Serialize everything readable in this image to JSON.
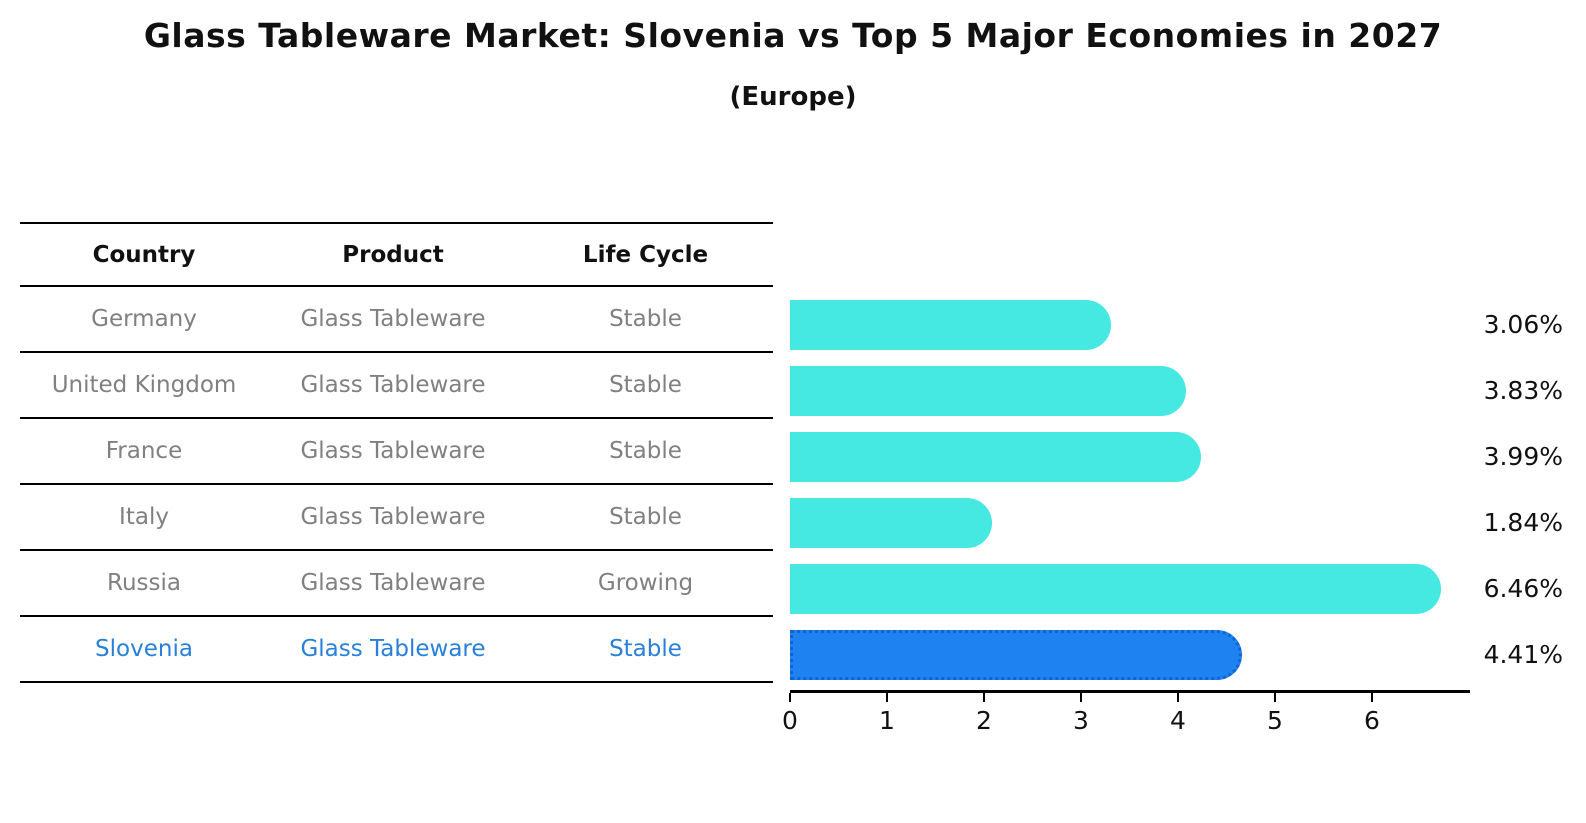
{
  "title": "Glass Tableware Market: Slovenia vs Top 5 Major Economies in 2027",
  "subtitle": "(Europe)",
  "table": {
    "headers": [
      "Country",
      "Product",
      "Life Cycle"
    ],
    "rows": [
      {
        "country": "Germany",
        "product": "Glass Tableware",
        "life_cycle": "Stable",
        "highlight": false
      },
      {
        "country": "United Kingdom",
        "product": "Glass Tableware",
        "life_cycle": "Stable",
        "highlight": false
      },
      {
        "country": "France",
        "product": "Glass Tableware",
        "life_cycle": "Stable",
        "highlight": false
      },
      {
        "country": "Italy",
        "product": "Glass Tableware",
        "life_cycle": "Stable",
        "highlight": false
      },
      {
        "country": "Russia",
        "product": "Glass Tableware",
        "life_cycle": "Growing",
        "highlight": false
      },
      {
        "country": "Slovenia",
        "product": "Glass Tableware",
        "life_cycle": "Stable",
        "highlight": true
      }
    ]
  },
  "chart_data": {
    "type": "bar",
    "orientation": "horizontal",
    "title": "Glass Tableware Market: Slovenia vs Top 5 Major Economies in 2027",
    "subtitle": "(Europe)",
    "categories": [
      "Germany",
      "United Kingdom",
      "France",
      "Italy",
      "Russia",
      "Slovenia"
    ],
    "values": [
      3.06,
      3.83,
      3.99,
      1.84,
      6.46,
      4.41
    ],
    "labels": [
      "3.06%",
      "3.83%",
      "3.99%",
      "1.84%",
      "6.46%",
      "4.41%"
    ],
    "x_ticks": [
      "0",
      "1",
      "2",
      "3",
      "4",
      "5",
      "6"
    ],
    "xlim": [
      0,
      7
    ],
    "grid": false,
    "legend": false,
    "highlight_index": 5,
    "bar_color": "#46e8e2",
    "highlight_bar_color": "#1e82f0",
    "highlight_border_color": "#1263d2",
    "highlight_text_color": "#2980d9",
    "row_text_color": "#808080"
  }
}
